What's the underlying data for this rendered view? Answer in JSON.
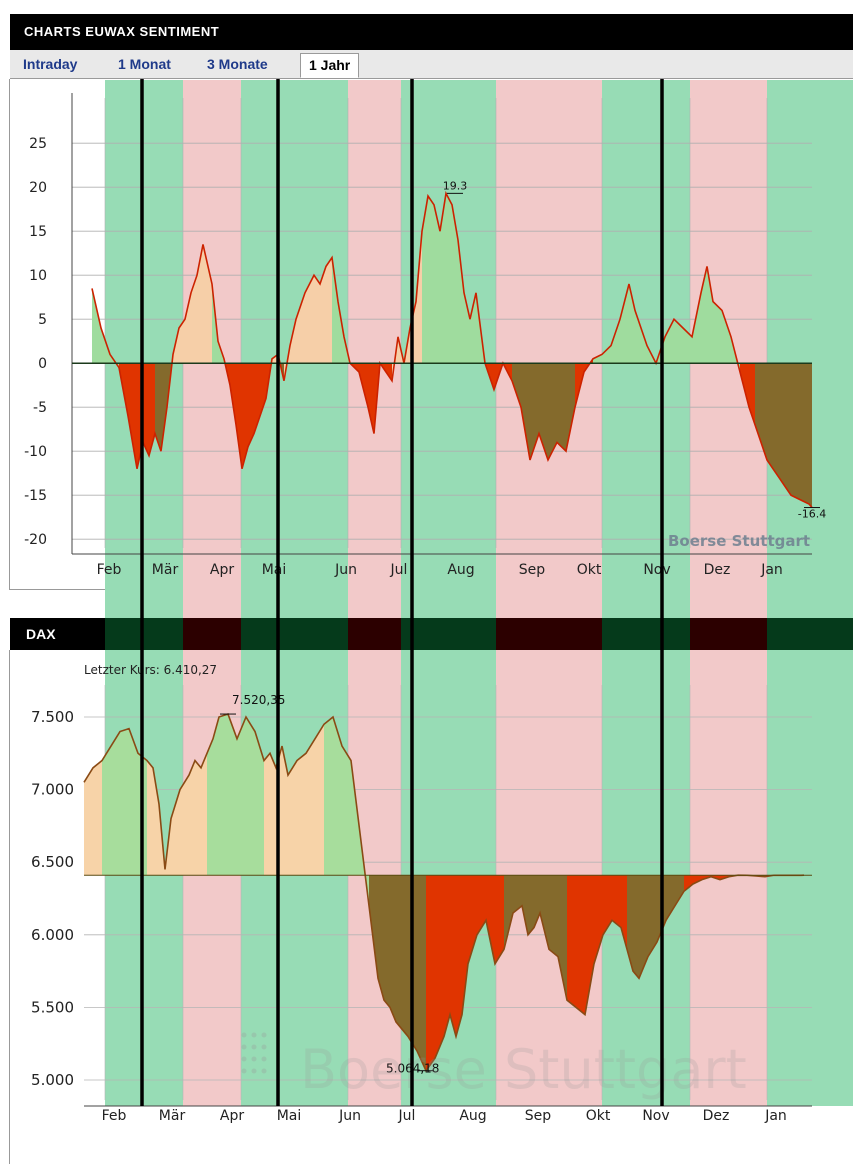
{
  "header": {
    "title": "CHARTS EUWAX SENTIMENT"
  },
  "tabs": [
    {
      "label": "Intraday",
      "active": false
    },
    {
      "label": "1 Monat",
      "active": false
    },
    {
      "label": "3 Monate",
      "active": false
    },
    {
      "label": "1 Jahr",
      "active": true
    }
  ],
  "dax_header": {
    "title": "DAX"
  },
  "colors": {
    "band_green": "#97dcb5",
    "band_red": "#f2c9c9",
    "neg_red": "#e03400",
    "neg_brown": "#846a2c",
    "line_red": "#cc2200",
    "line_olive": "#6c6218",
    "pos_green": "#9fdc9e",
    "pos_orange": "#f6cfa8"
  },
  "chart_data": [
    {
      "type": "area",
      "title": "",
      "x_ticks": [
        "Feb",
        "Mär",
        "Apr",
        "Mai",
        "Jun",
        "Jul",
        "Aug",
        "Sep",
        "Okt",
        "Nov",
        "Dez",
        "Jan"
      ],
      "y_ticks": [
        "25",
        "20",
        "15",
        "10",
        "5",
        "0",
        "-5",
        "-10",
        "-15",
        "-20"
      ],
      "ylim": [
        -21,
        29
      ],
      "xlim": [
        0,
        12
      ],
      "baseline": 0,
      "series": [
        {
          "x": [
            0.0,
            0.15,
            0.3,
            0.45,
            0.6,
            0.75,
            0.85,
            0.95,
            1.05,
            1.15,
            1.25,
            1.35,
            1.45,
            1.55,
            1.65,
            1.75,
            1.85,
            2.0,
            2.1,
            2.2,
            2.3,
            2.4,
            2.5,
            2.6,
            2.7,
            2.8,
            2.9,
            3.0,
            3.1,
            3.2,
            3.3,
            3.4,
            3.55,
            3.7,
            3.8,
            3.9,
            4.0,
            4.1,
            4.2,
            4.3,
            4.45,
            4.6,
            4.7,
            4.8,
            4.9,
            5.0,
            5.1,
            5.2,
            5.3,
            5.4,
            5.5,
            5.6,
            5.7,
            5.8,
            5.9,
            6.0,
            6.1,
            6.2,
            6.3,
            6.4,
            6.55,
            6.7,
            6.85,
            7.0,
            7.15,
            7.3,
            7.45,
            7.6,
            7.75,
            7.9,
            8.05,
            8.2,
            8.35,
            8.5,
            8.65,
            8.8,
            8.95,
            9.05,
            9.15,
            9.25,
            9.4,
            9.55,
            9.7,
            9.85,
            10.0,
            10.15,
            10.25,
            10.35,
            10.5,
            10.65,
            10.8,
            10.95,
            11.05,
            11.15,
            11.25,
            11.35,
            11.45,
            11.55,
            11.65,
            11.8,
            11.95,
            12.0
          ],
          "values": [
            8.5,
            4.0,
            1.0,
            -0.5,
            -6.0,
            -12.0,
            -9.0,
            -10.5,
            -8.0,
            -10.0,
            -5.0,
            1.0,
            4.0,
            5.0,
            8.0,
            10.0,
            13.5,
            9.0,
            2.5,
            0.5,
            -2.5,
            -7.0,
            -12.0,
            -9.5,
            -8.0,
            -6.0,
            -4.0,
            0.5,
            1.0,
            -2.0,
            2.0,
            5.0,
            8.0,
            10.0,
            9.0,
            11.0,
            12.0,
            7.0,
            3.0,
            0.0,
            -1.0,
            -5.0,
            -8.0,
            0.0,
            -1.0,
            -2.0,
            3.0,
            0.0,
            4.0,
            7.0,
            15.0,
            19.0,
            18.0,
            15.0,
            19.3,
            18.0,
            14.0,
            8.0,
            5.0,
            8.0,
            0.0,
            -3.0,
            0.0,
            -2.0,
            -5.0,
            -11.0,
            -8.0,
            -11.0,
            -9.0,
            -10.0,
            -5.0,
            -1.0,
            0.5,
            1.0,
            2.0,
            5.0,
            9.0,
            6.0,
            4.0,
            2.0,
            0.0,
            3.0,
            5.0,
            4.0,
            3.0,
            8.0,
            11.0,
            7.0,
            6.0,
            3.0,
            -1.0,
            -5.0,
            -7.0,
            -9.0,
            -11.0,
            -12.0,
            -13.0,
            -14.0,
            -15.0,
            -15.5,
            -16.0,
            -16.4
          ]
        }
      ],
      "annotations": [
        {
          "label": "19.3",
          "x": 6.05,
          "y": 19.3
        },
        {
          "label": "-16.4",
          "x": 12.0,
          "y": -16.4
        }
      ],
      "watermark": "Boerse Stuttgart"
    },
    {
      "type": "area",
      "title": "DAX",
      "subtitle": "Letzter Kurs: 6.410,27",
      "x_ticks": [
        "Feb",
        "Mär",
        "Apr",
        "Mai",
        "Jun",
        "Jul",
        "Aug",
        "Sep",
        "Okt",
        "Nov",
        "Dez",
        "Jan"
      ],
      "y_ticks": [
        "7.500",
        "7.000",
        "6.500",
        "6.000",
        "5.500",
        "5.000"
      ],
      "ylim": [
        4900,
        7750
      ],
      "xlim": [
        0,
        12
      ],
      "baseline": 6410.27,
      "series": [
        {
          "x": [
            0.0,
            0.15,
            0.3,
            0.45,
            0.6,
            0.75,
            0.9,
            1.05,
            1.15,
            1.25,
            1.35,
            1.45,
            1.6,
            1.75,
            1.85,
            1.95,
            2.05,
            2.15,
            2.25,
            2.4,
            2.55,
            2.7,
            2.85,
            3.0,
            3.1,
            3.2,
            3.3,
            3.4,
            3.55,
            3.7,
            3.85,
            4.0,
            4.15,
            4.3,
            4.45,
            4.6,
            4.75,
            4.9,
            5.0,
            5.1,
            5.2,
            5.3,
            5.4,
            5.55,
            5.7,
            5.85,
            6.0,
            6.1,
            6.2,
            6.3,
            6.4,
            6.55,
            6.7,
            6.85,
            7.0,
            7.15,
            7.3,
            7.4,
            7.5,
            7.6,
            7.75,
            7.9,
            8.05,
            8.2,
            8.35,
            8.5,
            8.65,
            8.8,
            8.95,
            9.05,
            9.15,
            9.25,
            9.4,
            9.55,
            9.7,
            9.85,
            10.0,
            10.15,
            10.3,
            10.45,
            10.6,
            10.75,
            10.9,
            11.05,
            11.2,
            11.35,
            11.5,
            11.65,
            11.8,
            11.95,
            12.0
          ],
          "values": [
            7050,
            7150,
            7200,
            7300,
            7400,
            7420,
            7250,
            7200,
            7150,
            6900,
            6450,
            6800,
            7000,
            7100,
            7200,
            7150,
            7250,
            7350,
            7500,
            7520.35,
            7350,
            7500,
            7400,
            7200,
            7250,
            7150,
            7300,
            7100,
            7200,
            7250,
            7350,
            7450,
            7500,
            7300,
            7200,
            6700,
            6200,
            5700,
            5550,
            5500,
            5400,
            5350,
            5300,
            5200,
            5064.18,
            5150,
            5300,
            5450,
            5300,
            5450,
            5800,
            6000,
            6100,
            5800,
            5900,
            6150,
            6200,
            6000,
            6050,
            6150,
            5900,
            5850,
            5550,
            5500,
            5450,
            5800,
            6000,
            6100,
            6050,
            5900,
            5750,
            5700,
            5850,
            5950,
            6100,
            6200,
            6300,
            6350,
            6380,
            6400,
            6380,
            6400,
            6410.27,
            6410,
            6405,
            6400,
            6410,
            6410,
            6410,
            6410,
            6410.27
          ],
          "fill_colors_above": "#9fdc9e",
          "fill_colors_below": "#846a2c"
        }
      ],
      "annotations": [
        {
          "label": "7.520,35",
          "x": 2.4,
          "y": 7520.35
        },
        {
          "label": "5.064,18",
          "x": 5.7,
          "y": 5064.18
        }
      ],
      "watermark": "Boerse Stuttgart"
    }
  ]
}
